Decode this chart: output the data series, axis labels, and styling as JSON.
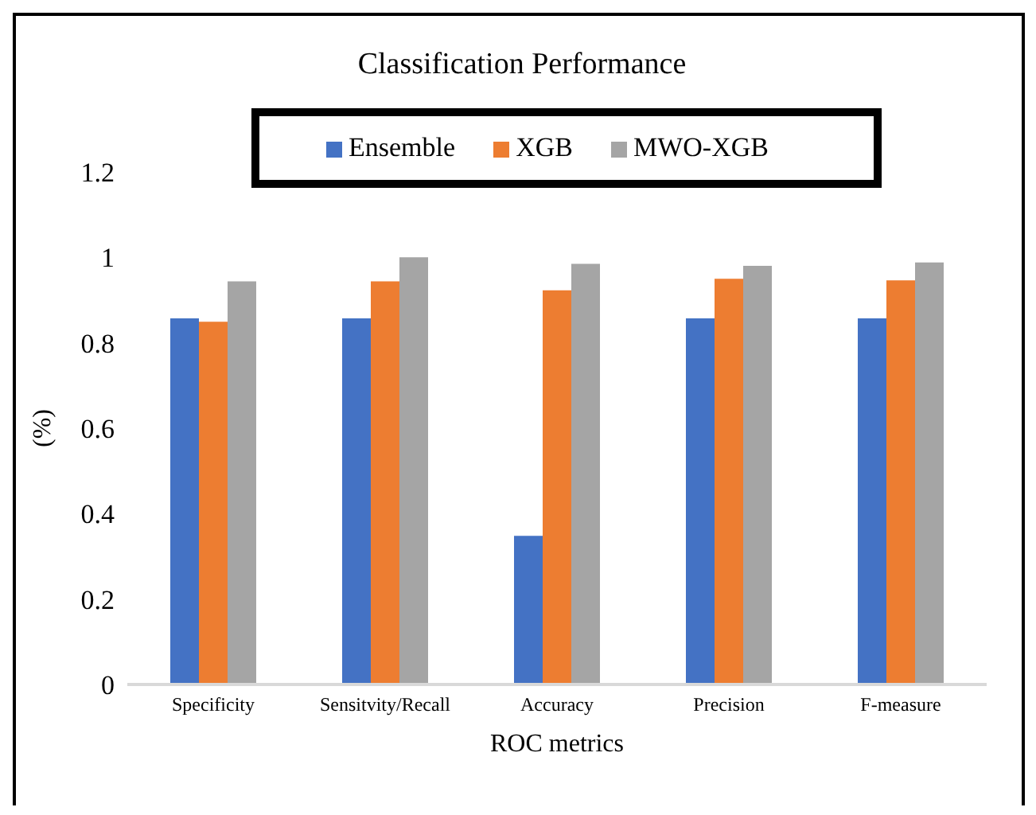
{
  "chart_data": {
    "type": "bar",
    "title": "Classification Performance",
    "xlabel": "ROC metrics",
    "ylabel": "(%)",
    "categories": [
      "Specificity",
      "Sensitvity/Recall",
      "Accuracy",
      "Precision",
      "F-measure"
    ],
    "series": [
      {
        "name": "Ensemble",
        "color": "#4472c4",
        "values": [
          0.857,
          0.857,
          0.348,
          0.857,
          0.857
        ]
      },
      {
        "name": "XGB",
        "color": "#ed7d31",
        "values": [
          0.849,
          0.944,
          0.923,
          0.95,
          0.946
        ]
      },
      {
        "name": "MWO-XGB",
        "color": "#a5a5a5",
        "values": [
          0.944,
          1.0,
          0.985,
          0.98,
          0.988
        ]
      }
    ],
    "ylim": [
      0,
      1.2
    ],
    "yticks": [
      0,
      0.2,
      0.4,
      0.6,
      0.8,
      1,
      1.2
    ],
    "grid": false,
    "legend": "top"
  }
}
